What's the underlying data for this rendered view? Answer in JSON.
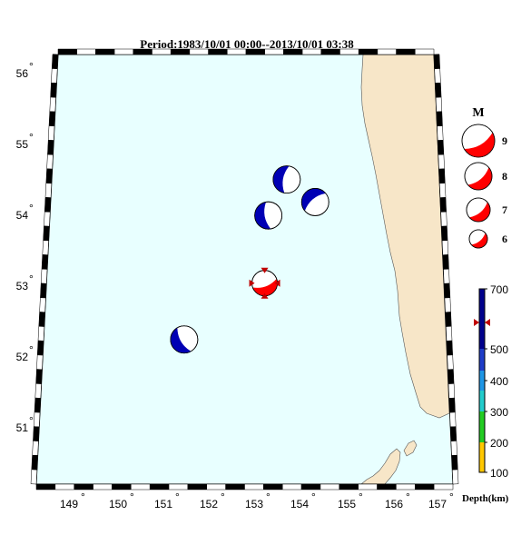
{
  "title": "Period:1983/10/01 00:00--2013/10/01 03:38",
  "lat_labels": [
    "56",
    "55",
    "54",
    "53",
    "52",
    "51"
  ],
  "lon_labels": [
    "149",
    "150",
    "151",
    "152",
    "153",
    "154",
    "155",
    "156",
    "157"
  ],
  "legend": {
    "header": "M",
    "items": [
      "9",
      "8",
      "7",
      "6"
    ]
  },
  "colorbar": {
    "labels": [
      "700",
      "500",
      "400",
      "300",
      "200",
      "100"
    ],
    "title": "Depth(km)"
  },
  "colors": {
    "ocean": "#e8ffff",
    "land": "#f7e6c8",
    "deep_event": "#0000b4",
    "main_event": "#ff0000",
    "marker": "#c00000",
    "cb_yellow": "#ffc800",
    "cb_green": "#22cc22",
    "cb_cyan": "#22cccc",
    "cb_lightblue": "#1e96e6",
    "cb_blue": "#1e3cc8",
    "cb_navy": "#00008c"
  },
  "events": [
    {
      "lon": 153.27,
      "lat": 53.04,
      "type": "main",
      "color": "main_event"
    },
    {
      "lon": 153.76,
      "lat": 54.51,
      "type": "deep",
      "color": "deep_event"
    },
    {
      "lon": 153.36,
      "lat": 54.0,
      "type": "deep",
      "color": "deep_event"
    },
    {
      "lon": 154.37,
      "lat": 54.19,
      "type": "deep",
      "color": "deep_event"
    },
    {
      "lon": 151.52,
      "lat": 52.24,
      "type": "deep",
      "color": "deep_event"
    }
  ]
}
